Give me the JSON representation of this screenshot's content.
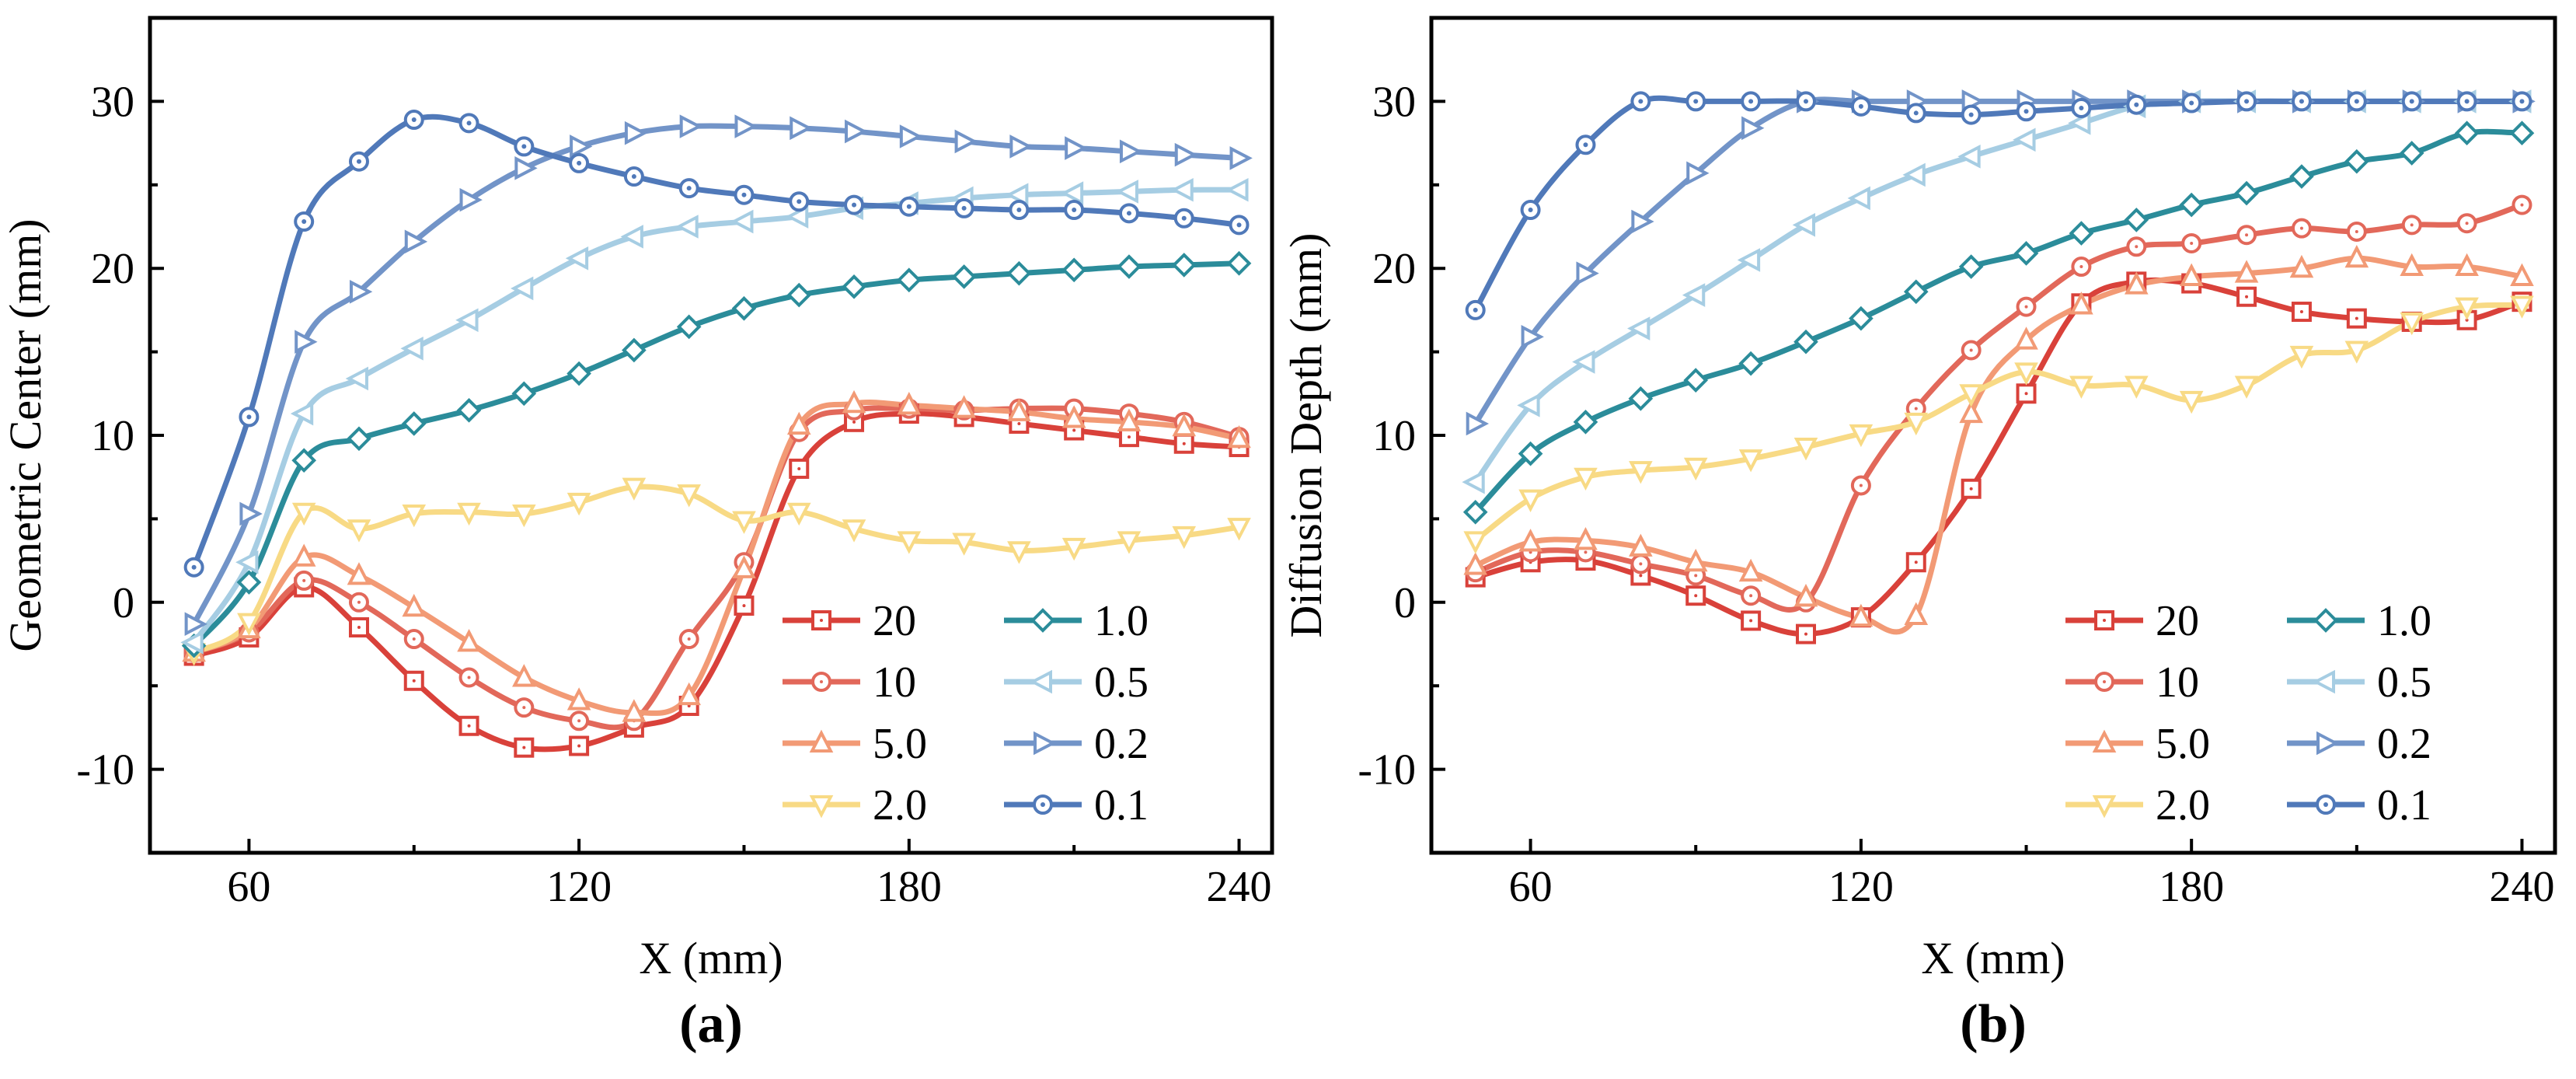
{
  "chart_data": [
    {
      "type": "line",
      "panel_label": "(a)",
      "xlabel": "X (mm)",
      "ylabel": "Geometric Center (mm)",
      "xlim": [
        42,
        246
      ],
      "ylim": [
        -15,
        35
      ],
      "xticks": [
        60,
        120,
        180,
        240
      ],
      "yticks": [
        -10,
        0,
        10,
        20,
        30
      ],
      "grid": false,
      "legend_position": "bottom-right",
      "x": [
        50,
        60,
        70,
        80,
        90,
        100,
        110,
        120,
        130,
        140,
        150,
        160,
        170,
        180,
        190,
        200,
        210,
        220,
        230,
        240
      ],
      "series": [
        {
          "name": "20",
          "color": "#d9413a",
          "marker": "square",
          "values": [
            -3.2,
            -2.1,
            0.9,
            -1.5,
            -4.7,
            -7.4,
            -8.7,
            -8.6,
            -7.5,
            -6.2,
            -0.2,
            8.0,
            10.8,
            11.3,
            11.1,
            10.7,
            10.3,
            9.9,
            9.5,
            9.3
          ]
        },
        {
          "name": "10",
          "color": "#e2685a",
          "marker": "circle",
          "values": [
            -3.0,
            -1.8,
            1.3,
            0.0,
            -2.2,
            -4.5,
            -6.3,
            -7.1,
            -7.1,
            -2.2,
            2.4,
            10.2,
            11.5,
            11.6,
            11.5,
            11.6,
            11.6,
            11.3,
            10.8,
            9.9
          ]
        },
        {
          "name": "5.0",
          "color": "#f29a75",
          "marker": "triangle-up",
          "values": [
            -3.0,
            -1.6,
            2.7,
            1.6,
            -0.3,
            -2.4,
            -4.5,
            -5.9,
            -6.6,
            -5.6,
            2.0,
            10.6,
            11.9,
            11.8,
            11.6,
            11.4,
            11.0,
            10.8,
            10.5,
            9.8
          ]
        },
        {
          "name": "2.0",
          "color": "#f8da85",
          "marker": "triangle-down",
          "values": [
            -3.0,
            -1.2,
            5.4,
            4.4,
            5.3,
            5.4,
            5.3,
            6.0,
            6.9,
            6.5,
            4.9,
            5.4,
            4.4,
            3.7,
            3.6,
            3.1,
            3.3,
            3.7,
            4.0,
            4.5
          ]
        },
        {
          "name": "1.0",
          "color": "#2b8c9a",
          "marker": "diamond",
          "values": [
            -2.6,
            1.2,
            8.5,
            9.8,
            10.7,
            11.5,
            12.5,
            13.7,
            15.1,
            16.5,
            17.6,
            18.4,
            18.9,
            19.3,
            19.5,
            19.7,
            19.9,
            20.1,
            20.2,
            20.3
          ]
        },
        {
          "name": "0.5",
          "color": "#a6cde3",
          "marker": "triangle-left",
          "values": [
            -2.4,
            2.4,
            11.3,
            13.4,
            15.2,
            16.9,
            18.8,
            20.6,
            21.9,
            22.5,
            22.8,
            23.1,
            23.6,
            23.9,
            24.2,
            24.4,
            24.5,
            24.6,
            24.7,
            24.7
          ]
        },
        {
          "name": "0.2",
          "color": "#7294c8",
          "marker": "triangle-right",
          "values": [
            -1.3,
            5.3,
            15.6,
            18.6,
            21.6,
            24.1,
            26.0,
            27.3,
            28.1,
            28.5,
            28.5,
            28.4,
            28.2,
            27.9,
            27.6,
            27.3,
            27.2,
            27.0,
            26.8,
            26.6
          ]
        },
        {
          "name": "0.1",
          "color": "#5079b9",
          "marker": "circle-dot",
          "values": [
            2.1,
            11.1,
            22.8,
            26.4,
            28.9,
            28.7,
            27.3,
            26.3,
            25.5,
            24.8,
            24.4,
            24.0,
            23.8,
            23.7,
            23.6,
            23.5,
            23.5,
            23.3,
            23.0,
            22.6
          ]
        }
      ]
    },
    {
      "type": "line",
      "panel_label": "(b)",
      "xlabel": "X (mm)",
      "ylabel": "Diffusion Depth (mm)",
      "xlim": [
        42,
        246
      ],
      "ylim": [
        -15,
        35
      ],
      "xticks": [
        60,
        120,
        180,
        240
      ],
      "yticks": [
        -10,
        0,
        10,
        20,
        30
      ],
      "grid": false,
      "legend_position": "bottom-right",
      "x": [
        50,
        60,
        70,
        80,
        90,
        100,
        110,
        120,
        130,
        140,
        150,
        160,
        170,
        180,
        190,
        200,
        210,
        220,
        230,
        240
      ],
      "series": [
        {
          "name": "20",
          "color": "#d9413a",
          "marker": "square",
          "values": [
            1.5,
            2.4,
            2.5,
            1.6,
            0.4,
            -1.1,
            -1.9,
            -0.9,
            2.4,
            6.8,
            12.5,
            17.9,
            19.2,
            19.1,
            18.3,
            17.4,
            17.0,
            16.8,
            16.9,
            18.0
          ]
        },
        {
          "name": "10",
          "color": "#e2685a",
          "marker": "circle",
          "values": [
            1.8,
            3.0,
            3.0,
            2.3,
            1.6,
            0.4,
            0.0,
            7.0,
            11.6,
            15.1,
            17.7,
            20.1,
            21.3,
            21.5,
            22.0,
            22.4,
            22.2,
            22.6,
            22.7,
            23.8
          ]
        },
        {
          "name": "5.0",
          "color": "#f29a75",
          "marker": "triangle-up",
          "values": [
            2.2,
            3.6,
            3.7,
            3.3,
            2.4,
            1.8,
            0.3,
            -0.9,
            -0.8,
            11.3,
            15.7,
            17.8,
            19.0,
            19.5,
            19.7,
            20.0,
            20.6,
            20.1,
            20.1,
            19.5
          ]
        },
        {
          "name": "2.0",
          "color": "#f8da85",
          "marker": "triangle-down",
          "values": [
            3.7,
            6.2,
            7.5,
            7.9,
            8.1,
            8.6,
            9.3,
            10.1,
            10.8,
            12.5,
            13.8,
            13.0,
            13.0,
            12.1,
            13.0,
            14.8,
            15.1,
            16.8,
            17.7,
            17.8
          ]
        },
        {
          "name": "1.0",
          "color": "#2b8c9a",
          "marker": "diamond",
          "values": [
            5.4,
            8.9,
            10.8,
            12.2,
            13.3,
            14.3,
            15.6,
            17.0,
            18.6,
            20.1,
            20.9,
            22.1,
            22.9,
            23.8,
            24.5,
            25.5,
            26.4,
            26.9,
            28.1,
            28.1
          ]
        },
        {
          "name": "0.5",
          "color": "#a6cde3",
          "marker": "triangle-left",
          "values": [
            7.2,
            11.8,
            14.4,
            16.4,
            18.4,
            20.5,
            22.6,
            24.2,
            25.6,
            26.7,
            27.7,
            28.7,
            29.7,
            30.0,
            30.0,
            30.0,
            30.0,
            30.0,
            30.0,
            30.0
          ]
        },
        {
          "name": "0.2",
          "color": "#7294c8",
          "marker": "triangle-right",
          "values": [
            10.7,
            15.9,
            19.7,
            22.8,
            25.7,
            28.4,
            30.0,
            30.0,
            30.0,
            30.0,
            30.0,
            30.0,
            30.0,
            30.0,
            30.0,
            30.0,
            30.0,
            30.0,
            30.0,
            30.0
          ]
        },
        {
          "name": "0.1",
          "color": "#5079b9",
          "marker": "circle-dot",
          "values": [
            17.5,
            23.5,
            27.4,
            30.0,
            30.0,
            30.0,
            30.0,
            29.7,
            29.3,
            29.2,
            29.4,
            29.6,
            29.8,
            29.9,
            30.0,
            30.0,
            30.0,
            30.0,
            30.0,
            30.0
          ]
        }
      ]
    }
  ]
}
